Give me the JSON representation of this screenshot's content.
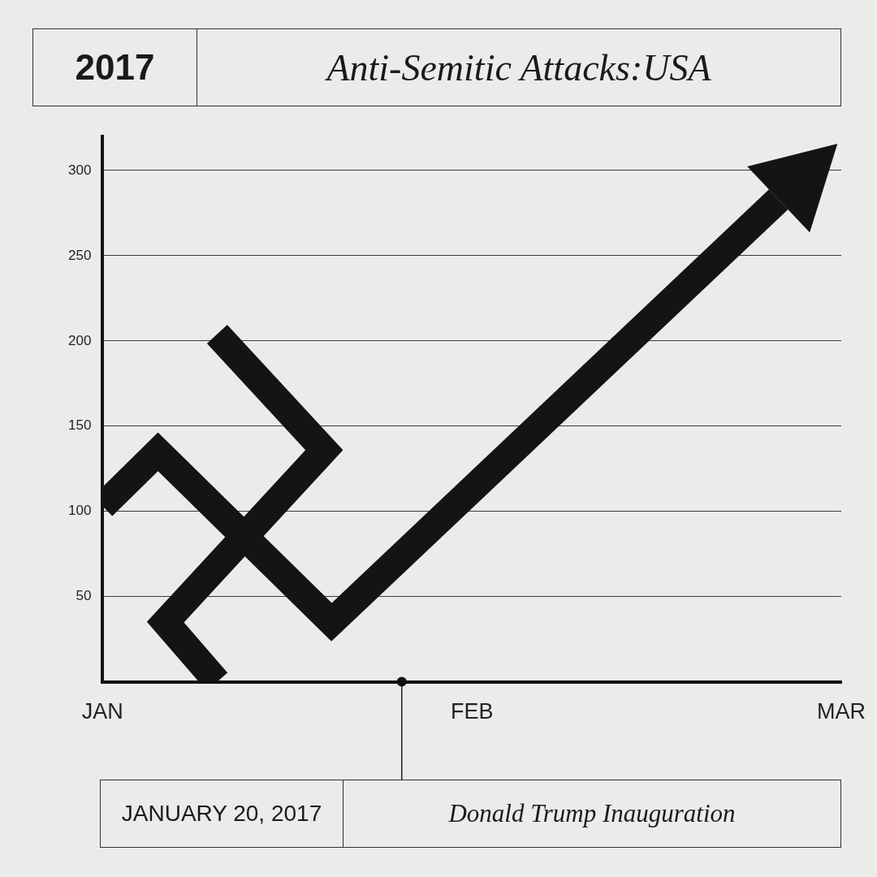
{
  "chart_data": {
    "type": "line",
    "year": "2017",
    "title": "Anti-Semitic Attacks:USA",
    "series": [
      {
        "color": "#141414",
        "marker": "arrow",
        "line_style": "solid",
        "x": [
          0,
          0.15,
          0.62,
          1.83
        ],
        "values": [
          103,
          135,
          35,
          283
        ]
      },
      {
        "color": "#141414",
        "marker": "none",
        "line_style": "solid",
        "x": [
          0.31,
          0.17,
          0.6,
          0.31
        ],
        "values": [
          0,
          35,
          136,
          204
        ]
      }
    ],
    "xlim": [
      0,
      2
    ],
    "xticks": [
      {
        "value": 0,
        "label": "JAN"
      },
      {
        "value": 1,
        "label": "FEB"
      },
      {
        "value": 2,
        "label": "MAR"
      }
    ],
    "ylim": [
      0,
      320
    ],
    "yticks": [
      50,
      100,
      150,
      200,
      250,
      300
    ],
    "grid": true,
    "annotations": [
      {
        "x": 0.81,
        "date": "JANUARY 20, 2017",
        "text": "Donald Trump Inauguration"
      }
    ]
  }
}
